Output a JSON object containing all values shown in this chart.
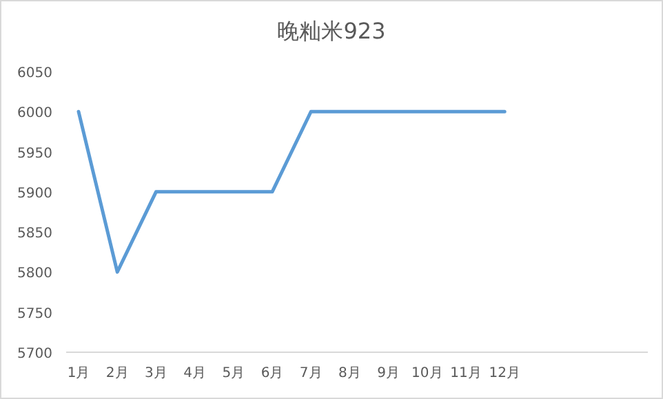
{
  "chart_data": {
    "type": "line",
    "title": "晚籼米923",
    "categories": [
      "1月",
      "2月",
      "3月",
      "4月",
      "5月",
      "6月",
      "7月",
      "8月",
      "9月",
      "10月",
      "11月",
      "12月"
    ],
    "series": [
      {
        "color": "#5b9bd5",
        "values": [
          6000,
          5800,
          5900,
          5900,
          5900,
          5900,
          6000,
          6000,
          6000,
          6000,
          6000,
          6000
        ]
      }
    ],
    "ylim": [
      5700,
      6050
    ],
    "yticks": [
      5700,
      5750,
      5800,
      5850,
      5900,
      5950,
      6000,
      6050
    ],
    "grid": false,
    "marker": "none",
    "line_style": "solid"
  }
}
